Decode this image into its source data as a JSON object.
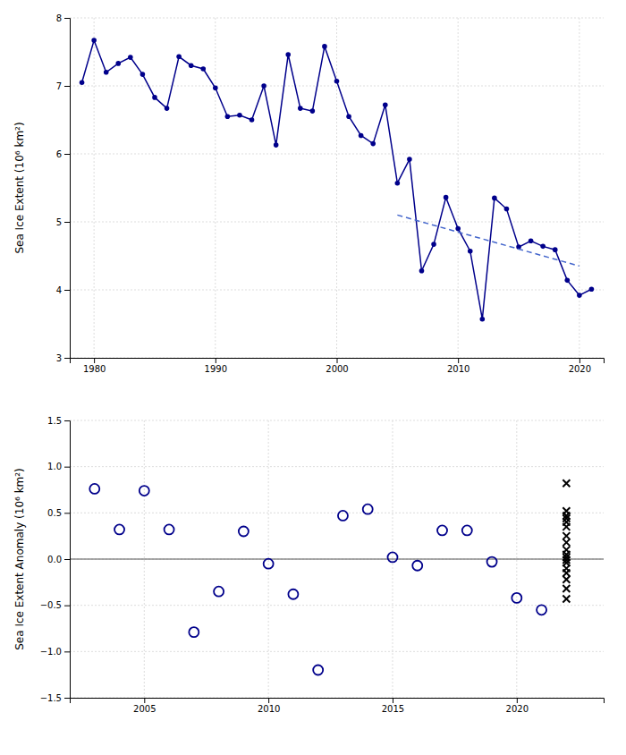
{
  "chart_data": [
    {
      "type": "line",
      "ylabel": "Sea Ice Extent (10⁶ km²)",
      "xlim": [
        1978,
        2022
      ],
      "xticks": [
        1980,
        1990,
        2000,
        2010,
        2020
      ],
      "ylim": [
        3.0,
        8.0
      ],
      "yticks": [
        3,
        4,
        5,
        6,
        7,
        8
      ],
      "grid": true,
      "series": [
        {
          "color": "#00008B",
          "marker": "o",
          "line_style": "solid",
          "x": [
            1979,
            1980,
            1981,
            1982,
            1983,
            1984,
            1985,
            1986,
            1987,
            1988,
            1989,
            1990,
            1991,
            1992,
            1993,
            1994,
            1995,
            1996,
            1997,
            1998,
            1999,
            2000,
            2001,
            2002,
            2003,
            2004,
            2005,
            2006,
            2007,
            2008,
            2009,
            2010,
            2011,
            2012,
            2013,
            2014,
            2015,
            2016,
            2017,
            2018,
            2019,
            2020,
            2021
          ],
          "values": [
            7.05,
            7.67,
            7.2,
            7.33,
            7.42,
            7.17,
            6.83,
            6.67,
            7.43,
            7.3,
            7.25,
            6.97,
            6.55,
            6.57,
            6.5,
            7.0,
            6.13,
            7.46,
            6.67,
            6.63,
            7.58,
            7.07,
            6.55,
            6.27,
            6.15,
            6.72,
            5.57,
            5.92,
            4.28,
            4.67,
            5.36,
            4.9,
            4.57,
            3.57,
            5.35,
            5.19,
            4.63,
            4.72,
            4.64,
            4.59,
            4.14,
            3.92,
            4.01
          ]
        },
        {
          "color": "#4466CC",
          "line_style": "dashed",
          "x": [
            2005,
            2020
          ],
          "values": [
            5.1,
            4.35
          ]
        }
      ]
    },
    {
      "type": "scatter",
      "ylabel": "Sea Ice Extent Anomaly (10⁶ km²)",
      "xlim": [
        2002,
        2023.5
      ],
      "xticks": [
        2005,
        2010,
        2015,
        2020
      ],
      "ylim": [
        -1.5,
        1.5
      ],
      "yticks": [
        {
          "value": -1.5,
          "label": "−1.5"
        },
        {
          "value": -1.0,
          "label": "−1.0"
        },
        {
          "value": -0.5,
          "label": "−0.5"
        },
        {
          "value": 0.0,
          "label": "0.0"
        },
        0.5,
        {
          "value": 1.0,
          "label": "1.0"
        },
        1.5
      ],
      "grid": true,
      "reference_lines": [
        {
          "value": 0,
          "color": "#555555"
        }
      ],
      "series": [
        {
          "color": "#00008B",
          "marker": "open-circle",
          "x": [
            2003,
            2004,
            2005,
            2006,
            2007,
            2008,
            2009,
            2010,
            2011,
            2012,
            2013,
            2014,
            2015,
            2016,
            2017,
            2018,
            2019,
            2020,
            2021
          ],
          "values": [
            0.76,
            0.32,
            0.74,
            0.32,
            -0.79,
            -0.35,
            0.3,
            -0.05,
            -0.38,
            -1.2,
            0.47,
            0.54,
            0.02,
            -0.07,
            0.31,
            0.31,
            -0.03,
            -0.42,
            -0.55
          ]
        },
        {
          "color": "#000000",
          "marker": "x",
          "x": [
            2022,
            2022,
            2022,
            2022,
            2022,
            2022,
            2022,
            2022,
            2022,
            2022,
            2022,
            2022,
            2022,
            2022,
            2022,
            2022,
            2022,
            2022
          ],
          "values": [
            0.82,
            0.52,
            0.47,
            0.44,
            0.4,
            0.35,
            0.25,
            0.18,
            0.1,
            0.05,
            0.02,
            -0.01,
            -0.04,
            -0.1,
            -0.15,
            -0.22,
            -0.32,
            -0.43
          ]
        }
      ]
    }
  ]
}
